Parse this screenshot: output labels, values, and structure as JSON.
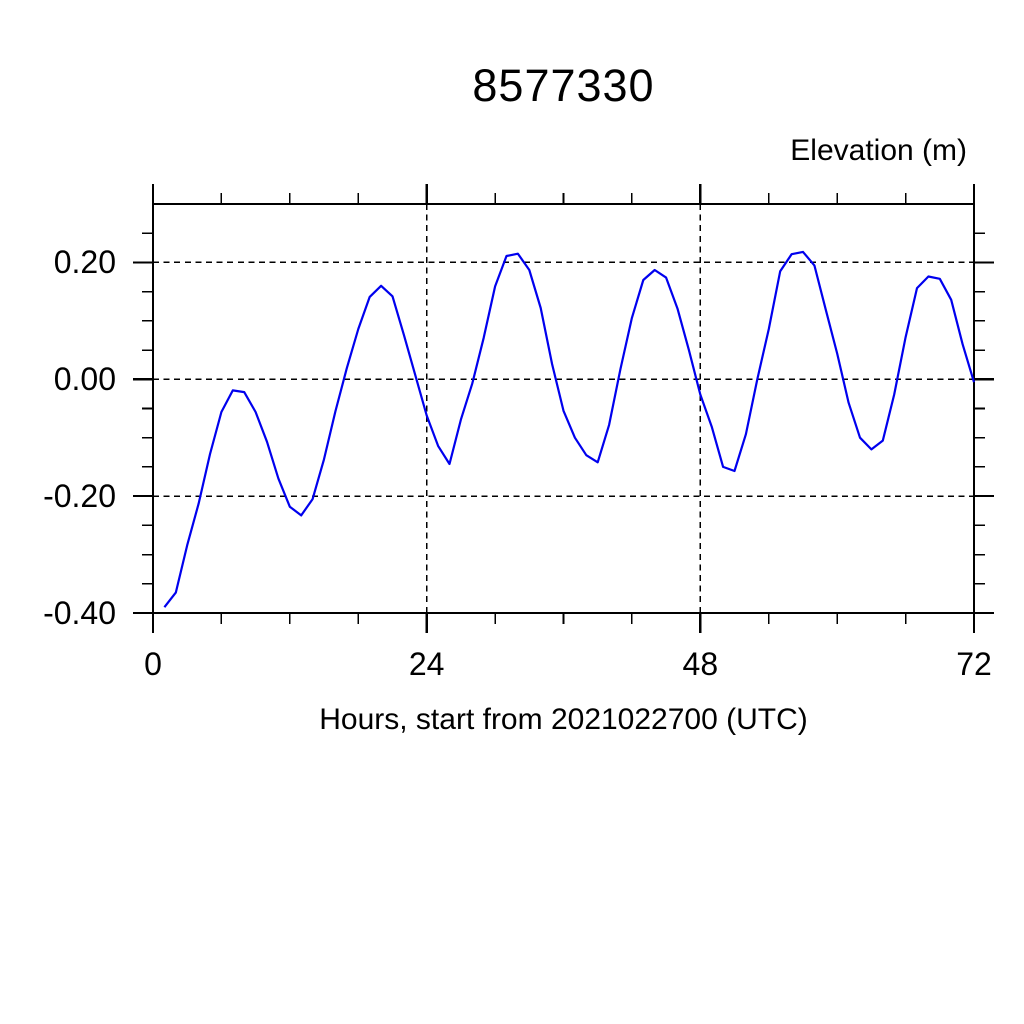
{
  "chart_data": {
    "type": "line",
    "title": "8577330",
    "ylabel": "Elevation (m)",
    "ylabel_position": "top-right",
    "xlabel": "Hours, start from 2021022700 (UTC)",
    "xlim": [
      0,
      72
    ],
    "ylim": [
      -0.4,
      0.3
    ],
    "x_ticks": [
      0,
      24,
      48,
      72
    ],
    "x_tick_labels": [
      "0",
      "24",
      "48",
      "72"
    ],
    "x_minor_step": 6,
    "y_ticks": [
      -0.4,
      -0.2,
      0.0,
      0.2
    ],
    "y_tick_labels": [
      "-0.40",
      "-0.20",
      "0.00",
      "0.20"
    ],
    "y_minor_step": 0.05,
    "grid": {
      "style": "dashed",
      "x_gridlines": [
        24,
        48
      ],
      "y_gridlines": [
        0.2,
        0.0,
        -0.2
      ]
    },
    "legend": "none",
    "line_color": "#0000EE",
    "frame_color": "#000000",
    "series": [
      {
        "name": "elevation",
        "x": [
          1,
          2,
          3,
          4,
          5,
          6,
          7,
          8,
          9,
          10,
          11,
          12,
          13,
          14,
          15,
          16,
          17,
          18,
          19,
          20,
          21,
          22,
          23,
          24,
          25,
          26,
          27,
          28,
          29,
          30,
          31,
          32,
          33,
          34,
          35,
          36,
          37,
          38,
          39,
          40,
          41,
          42,
          43,
          44,
          45,
          46,
          47,
          48,
          49,
          50,
          51,
          52,
          53,
          54,
          55,
          56,
          57,
          58,
          59,
          60,
          61,
          62,
          63,
          64,
          65,
          66,
          67,
          68,
          69,
          70,
          71,
          72
        ],
        "y": [
          -0.39,
          -0.365,
          -0.284,
          -0.213,
          -0.128,
          -0.056,
          -0.019,
          -0.022,
          -0.056,
          -0.107,
          -0.17,
          -0.218,
          -0.233,
          -0.205,
          -0.137,
          -0.055,
          0.019,
          0.086,
          0.141,
          0.16,
          0.142,
          0.076,
          0.007,
          -0.062,
          -0.114,
          -0.145,
          -0.069,
          -0.007,
          0.071,
          0.159,
          0.211,
          0.215,
          0.187,
          0.122,
          0.026,
          -0.054,
          -0.1,
          -0.13,
          -0.142,
          -0.078,
          0.018,
          0.105,
          0.17,
          0.187,
          0.174,
          0.121,
          0.05,
          -0.026,
          -0.081,
          -0.15,
          -0.157,
          -0.094,
          0.0,
          0.086,
          0.185,
          0.214,
          0.218,
          0.195,
          0.119,
          0.044,
          -0.04,
          -0.1,
          -0.12,
          -0.105,
          -0.026,
          0.072,
          0.156,
          0.176,
          0.172,
          0.136,
          0.06,
          -0.005
        ]
      }
    ]
  }
}
